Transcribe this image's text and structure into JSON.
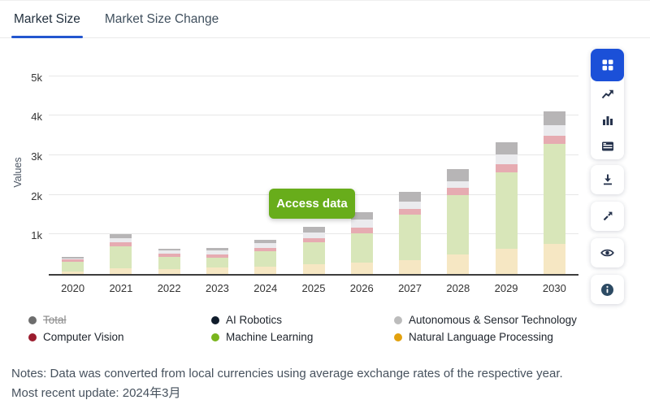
{
  "tabs": {
    "items": [
      {
        "label": "Market Size",
        "active": true
      },
      {
        "label": "Market Size Change",
        "active": false
      }
    ]
  },
  "chart_data": {
    "type": "bar",
    "stacked": true,
    "title": "",
    "xlabel": "",
    "ylabel": "Values",
    "categories": [
      "2020",
      "2021",
      "2022",
      "2023",
      "2024",
      "2025",
      "2026",
      "2027",
      "2028",
      "2029",
      "2030"
    ],
    "yticks": [
      {
        "value": 1000,
        "label": "1k"
      },
      {
        "value": 2000,
        "label": "2k"
      },
      {
        "value": 3000,
        "label": "3k"
      },
      {
        "value": 4000,
        "label": "4k"
      },
      {
        "value": 5000,
        "label": "5k"
      }
    ],
    "ylim": [
      0,
      5200
    ],
    "grid": true,
    "legend_position": "bottom",
    "series": [
      {
        "name": "Natural Language Processing",
        "bar_color": "#f6e7c3",
        "values": [
          60,
          150,
          115,
          155,
          190,
          240,
          290,
          355,
          490,
          645,
          760
        ]
      },
      {
        "name": "Machine Learning",
        "bar_color": "#d8e6b9",
        "values": [
          250,
          545,
          325,
          250,
          390,
          560,
          730,
          1145,
          1505,
          1920,
          2525
        ]
      },
      {
        "name": "Computer Vision",
        "bar_color": "#e6abb1",
        "values": [
          55,
          100,
          70,
          90,
          80,
          100,
          160,
          140,
          185,
          205,
          205
        ]
      },
      {
        "name": "AI Robotics",
        "bar_color": "#ebebee",
        "values": [
          35,
          120,
          80,
          95,
          120,
          155,
          205,
          190,
          160,
          260,
          265
        ]
      },
      {
        "name": "Autonomous & Sensor Technology",
        "bar_color": "#b7b5b6",
        "values": [
          40,
          90,
          40,
          75,
          90,
          135,
          170,
          240,
          320,
          305,
          360
        ]
      }
    ],
    "totals": [
      440,
      1005,
      630,
      665,
      870,
      1190,
      1555,
      2070,
      2660,
      3335,
      4115
    ]
  },
  "overlay": {
    "button_label": "Access data",
    "button_color": "#68ad1b"
  },
  "legend": {
    "items": [
      {
        "label": "Total",
        "color": "#6d6d6d",
        "disabled": true
      },
      {
        "label": "AI Robotics",
        "color": "#101c2b",
        "disabled": false
      },
      {
        "label": "Autonomous & Sensor Technology",
        "color": "#bcbcbc",
        "disabled": false
      },
      {
        "label": "Computer Vision",
        "color": "#9b1c2e",
        "disabled": false
      },
      {
        "label": "Machine Learning",
        "color": "#7ab51d",
        "disabled": false
      },
      {
        "label": "Natural Language Processing",
        "color": "#e2a10e",
        "disabled": false
      }
    ]
  },
  "toolbar": {
    "active_color": "#1b50d8",
    "groups": [
      {
        "icons": [
          "dashboard-grid",
          "line-chart",
          "bar-chart",
          "table"
        ]
      },
      {
        "icons": [
          "download"
        ]
      },
      {
        "icons": [
          "expand"
        ]
      },
      {
        "icons": [
          "eye"
        ]
      },
      {
        "icons": [
          "info"
        ]
      }
    ]
  },
  "notes": {
    "line1": "Notes: Data was converted from local currencies using average exchange rates of the respective year.",
    "line2": "Most recent update: 2024年3月"
  },
  "accent": {
    "tab_underline": "#2356cf"
  }
}
